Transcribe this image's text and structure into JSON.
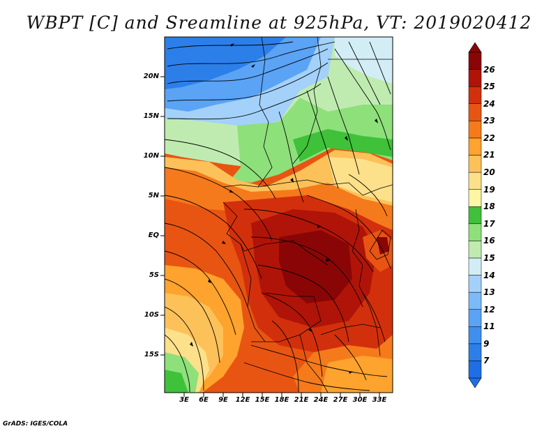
{
  "title": "WBPT [C] and Sreamline at 925hPa, VT: 2019020412",
  "credit": "GrADS: IGES/COLA",
  "map": {
    "variable": "Wet-bulb potential temperature (°C) with streamlines",
    "level": "925hPa",
    "valid_time": "2019020412",
    "lat_labels": [
      "20N",
      "15N",
      "10N",
      "5N",
      "EQ",
      "5S",
      "10S",
      "15S"
    ],
    "lon_labels": [
      "3E",
      "6E",
      "9E",
      "12E",
      "15E",
      "18E",
      "21E",
      "24E",
      "27E",
      "30E",
      "33E"
    ],
    "lat_range": [
      -20,
      24.5
    ],
    "lon_range": [
      0,
      35
    ]
  },
  "colorbar": {
    "labels": [
      "7",
      "9",
      "11",
      "12",
      "13",
      "14",
      "15",
      "16",
      "17",
      "18",
      "19",
      "20",
      "21",
      "22",
      "23",
      "24",
      "25",
      "26"
    ],
    "colors": [
      "#1e6ee6",
      "#2c7fe8",
      "#3e8fef",
      "#5aa3f5",
      "#7dbaf8",
      "#a3d1fa",
      "#d3edf6",
      "#bfebb0",
      "#8ee07a",
      "#3fc13a",
      "#fdf6a4",
      "#fde08a",
      "#fdc15a",
      "#fda32e",
      "#f57a1c",
      "#e85512",
      "#d2300c",
      "#b01408",
      "#8a0606"
    ]
  }
}
